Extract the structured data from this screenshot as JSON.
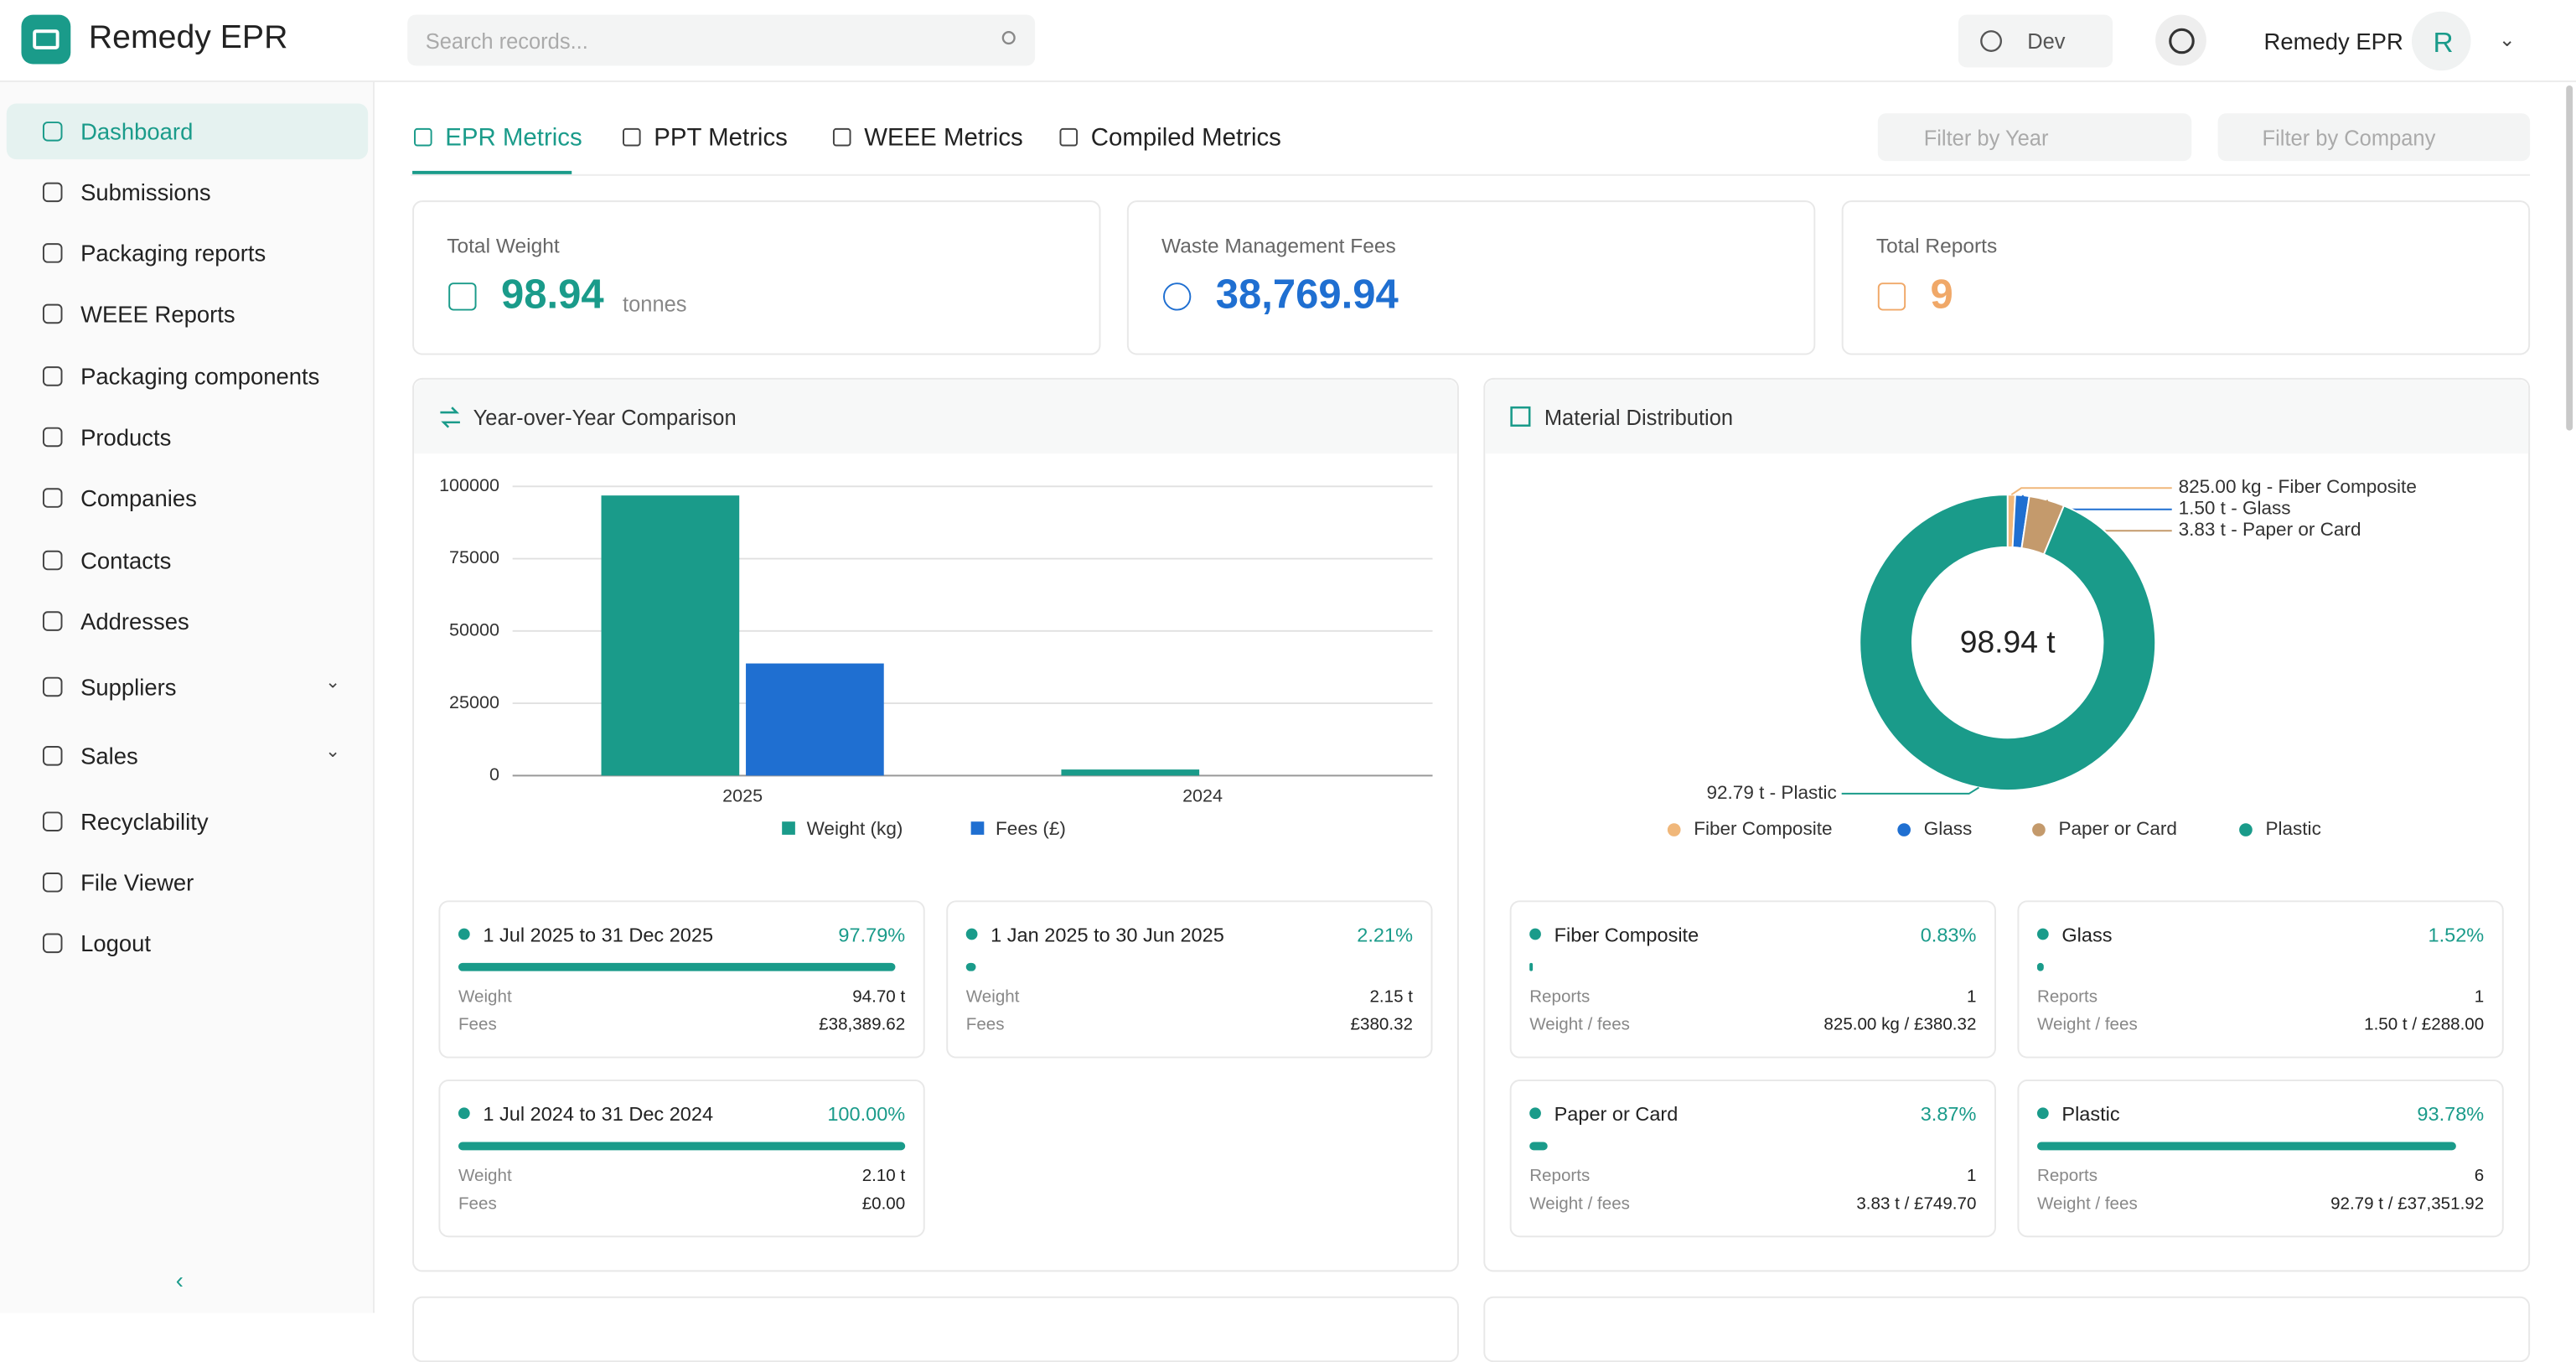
{
  "header": {
    "brand": "Remedy EPR",
    "search_placeholder": "Search records...",
    "environment": "Dev",
    "user_name": "Remedy EPR",
    "avatar": "R"
  },
  "sidebar": {
    "nav": [
      {
        "label": "Dashboard",
        "active": true
      },
      {
        "label": "Submissions"
      },
      {
        "label": "Packaging reports"
      },
      {
        "label": "WEEE Reports"
      },
      {
        "label": "Packaging components"
      },
      {
        "label": "Products"
      },
      {
        "label": "Companies"
      },
      {
        "label": "Contacts"
      },
      {
        "label": "Addresses"
      },
      {
        "label": "Suppliers",
        "submenu": true
      },
      {
        "label": "Sales",
        "submenu": true
      },
      {
        "label": "Recyclability"
      },
      {
        "label": "File Viewer"
      },
      {
        "label": "Logout"
      }
    ]
  },
  "tabs": [
    {
      "label": "EPR Metrics",
      "active": true
    },
    {
      "label": "PPT Metrics"
    },
    {
      "label": "WEEE Metrics"
    },
    {
      "label": "Compiled Metrics"
    }
  ],
  "filters": [
    "Filter by Year",
    "Filter by Company"
  ],
  "stats": [
    {
      "label": "Total Weight",
      "value": "98.94",
      "unit": "tonnes",
      "color": "#1a9b8a"
    },
    {
      "label": "Waste Management Fees",
      "value": "38,769.94",
      "color": "#1f6fd1"
    },
    {
      "label": "Total Reports",
      "value": "9",
      "color": "#f0a868"
    }
  ],
  "yoy": {
    "title": "Year-over-Year Comparison",
    "chart": {
      "type": "bar",
      "categories": [
        "2025",
        "2024"
      ],
      "series": [
        {
          "name": "Weight (kg)",
          "color": "#1a9b8a",
          "values": [
            96850,
            2100
          ]
        },
        {
          "name": "Fees (£)",
          "color": "#1f6fd1",
          "values": [
            38769.94,
            0
          ]
        }
      ],
      "ylim": [
        0,
        100000
      ],
      "yticks": [
        0,
        25000,
        50000,
        75000,
        100000
      ],
      "grid": true
    },
    "periods": [
      {
        "label": "1 Jul 2025 to 31 Dec 2025",
        "percent": {
          "value": 97.79,
          "label": "97.79%"
        },
        "weight_label": "Weight",
        "weight": "94.70 t",
        "fees_label": "Fees",
        "fees": "£38,389.62"
      },
      {
        "label": "1 Jan 2025 to 30 Jun 2025",
        "percent": {
          "value": 2.21,
          "label": "2.21%"
        },
        "weight_label": "Weight",
        "weight": "2.15 t",
        "fees_label": "Fees",
        "fees": "£380.32"
      },
      {
        "label": "1 Jul 2024 to 31 Dec 2024",
        "percent": {
          "value": 100,
          "label": "100.00%"
        },
        "weight_label": "Weight",
        "weight": "2.10 t",
        "fees_label": "Fees",
        "fees": "£0.00"
      }
    ]
  },
  "materials": {
    "title": "Material Distribution",
    "chart": {
      "type": "donut",
      "center_label": "98.94 t",
      "categories": [
        "Fiber Composite",
        "Glass",
        "Paper or Card",
        "Plastic"
      ],
      "values": [
        0.825,
        1.5,
        3.83,
        92.79
      ],
      "value_labels": [
        "825.00 kg - Fiber Composite",
        "1.50 t - Glass",
        "3.83 t - Paper or Card",
        "92.79 t - Plastic"
      ],
      "colors": [
        "#f0b77a",
        "#1f6fd1",
        "#c49a6c",
        "#1a9b8a"
      ]
    },
    "cards": [
      {
        "name": "Fiber Composite",
        "percent": {
          "value": 0.83,
          "label": "0.83%"
        },
        "reports_label": "Reports",
        "reports": "1",
        "wf_label": "Weight / fees",
        "weight_fees": "825.00 kg / £380.32"
      },
      {
        "name": "Glass",
        "percent": {
          "value": 1.52,
          "label": "1.52%"
        },
        "reports_label": "Reports",
        "reports": "1",
        "wf_label": "Weight / fees",
        "weight_fees": "1.50 t / £288.00"
      },
      {
        "name": "Paper or Card",
        "percent": {
          "value": 3.87,
          "label": "3.87%"
        },
        "reports_label": "Reports",
        "reports": "1",
        "wf_label": "Weight / fees",
        "weight_fees": "3.83 t / £749.70"
      },
      {
        "name": "Plastic",
        "percent": {
          "value": 93.78,
          "label": "93.78%"
        },
        "reports_label": "Reports",
        "reports": "6",
        "wf_label": "Weight / fees",
        "weight_fees": "92.79 t / £37,351.92"
      }
    ]
  }
}
